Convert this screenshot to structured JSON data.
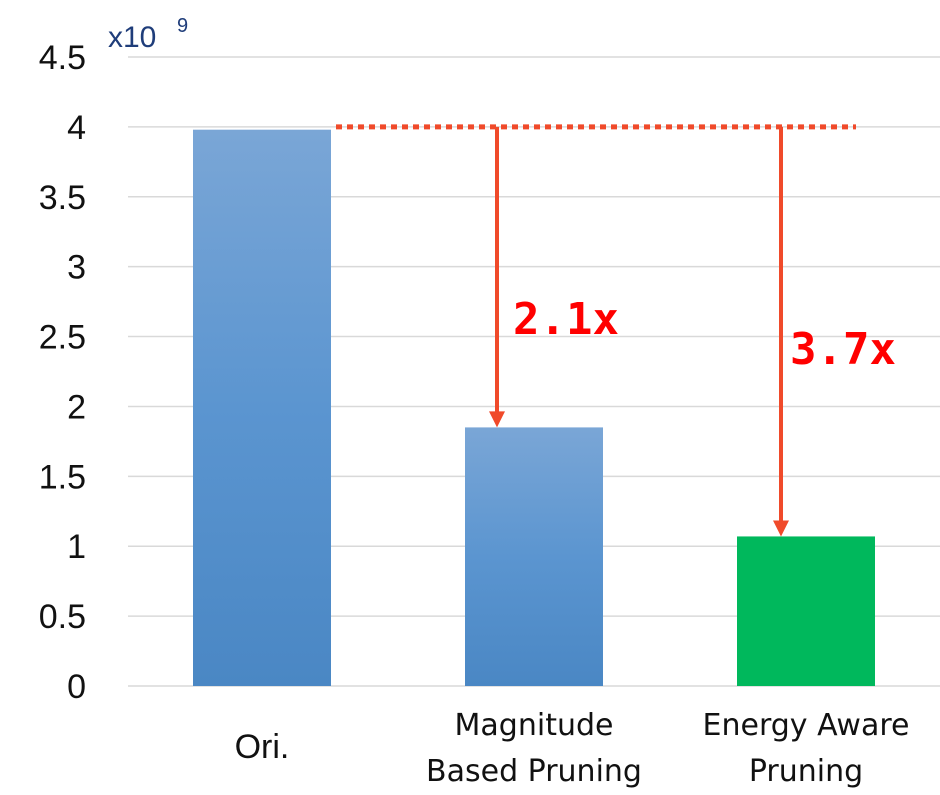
{
  "chart_data": {
    "type": "bar",
    "categories": [
      "Ori.",
      "Magnitude Based Pruning",
      "Energy Aware Pruning"
    ],
    "category_lines": [
      [
        "Ori."
      ],
      [
        "Magnitude",
        "Based Pruning"
      ],
      [
        "Energy Aware",
        "Pruning"
      ]
    ],
    "values": [
      3.98,
      1.85,
      1.07
    ],
    "bar_colors": [
      "#5b8fc9",
      "#5b8fc9",
      "#00b85c"
    ],
    "ylim": [
      0,
      4.5
    ],
    "yticks": [
      "0",
      "0.5",
      "1",
      "1.5",
      "2",
      "2.5",
      "3",
      "3.5",
      "4",
      "4.5"
    ],
    "scale_label": {
      "base": "x10",
      "exponent": "9"
    },
    "reference_value": 4,
    "annotations": [
      {
        "target": "Magnitude Based Pruning",
        "label": "2.1x"
      },
      {
        "target": "Energy Aware Pruning",
        "label": "3.7x"
      }
    ],
    "annotation_color": "#ff0000",
    "arrow_color": "#f04a2a",
    "grid": true,
    "xlabel": "",
    "ylabel": "",
    "title": ""
  }
}
